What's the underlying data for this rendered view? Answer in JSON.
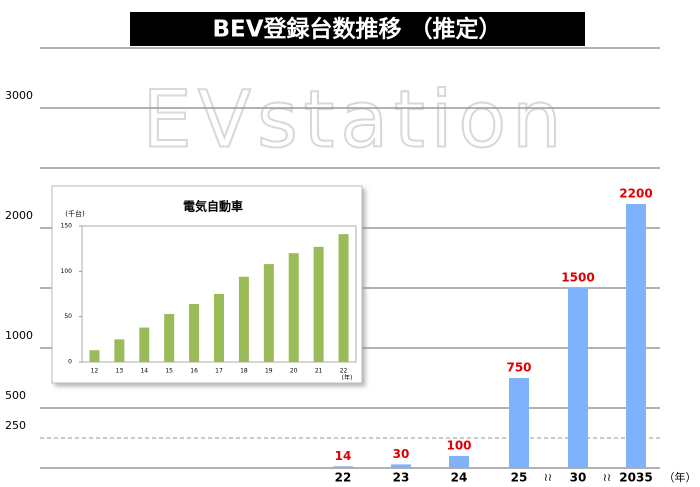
{
  "chart_data": [
    {
      "type": "bar",
      "title": "BEV登録台数推移 （推定）",
      "watermark": "EVstation",
      "categories": [
        "22",
        "23",
        "24",
        "25",
        "30",
        "2035"
      ],
      "values": [
        14,
        30,
        100,
        750,
        1500,
        2200
      ],
      "color": "#7fb2fa",
      "value_label_color": "#e00000",
      "ylim": [
        0,
        3500
      ],
      "yticks": [
        250,
        500,
        1000,
        2000,
        3000
      ],
      "gridlines": [
        0,
        500,
        1000,
        1500,
        2000,
        2500,
        3000,
        3500
      ],
      "dashed_line": 250,
      "axis_break": "≀≀",
      "x_unit": "（年）"
    },
    {
      "type": "bar",
      "title": "電気自動車",
      "y_unit": "(千台)",
      "x_unit": "(年)",
      "categories": [
        "12",
        "13",
        "14",
        "15",
        "16",
        "17",
        "18",
        "19",
        "20",
        "21",
        "22"
      ],
      "values": [
        13,
        25,
        38,
        53,
        64,
        75,
        94,
        108,
        120,
        127,
        141
      ],
      "color": "#9bbb59",
      "ylim": [
        0,
        150
      ],
      "yticks": [
        0,
        50,
        100,
        150
      ]
    }
  ]
}
